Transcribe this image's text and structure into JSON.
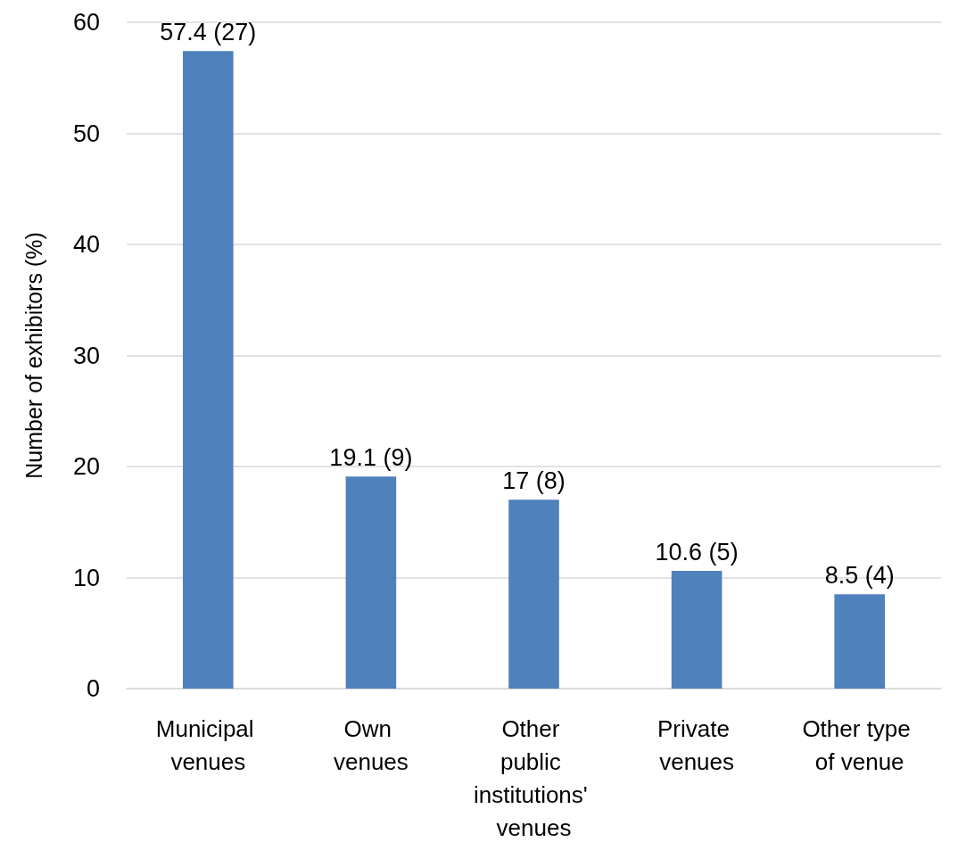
{
  "chart_data": {
    "type": "bar",
    "ylabel": "Number of exhibitors (%)",
    "categories": [
      "Municipal venues",
      "Own venues",
      "Other public institutions' venues",
      "Private venues",
      "Other type of venue"
    ],
    "values": [
      57.4,
      19.1,
      17,
      10.6,
      8.5
    ],
    "value_labels": [
      "57.4 (27)",
      "19.1 (9)",
      "17 (8)",
      "10.6 (5)",
      "8.5 (4)"
    ],
    "color": "#4f81bd",
    "ylim": [
      0,
      60
    ],
    "yticks": [
      0,
      10,
      20,
      30,
      40,
      50,
      60
    ],
    "grid": "y"
  }
}
